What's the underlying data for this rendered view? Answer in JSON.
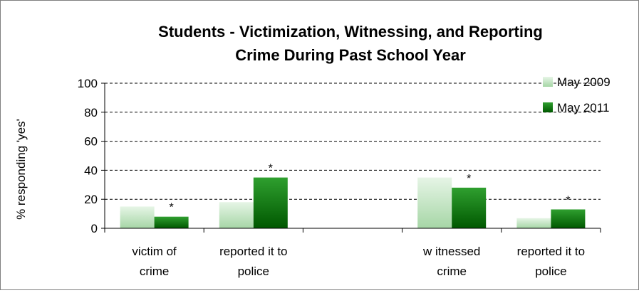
{
  "chart_data": {
    "type": "bar",
    "title_lines": [
      "Students - Victimization, Witnessing, and Reporting",
      "Crime During Past School Year"
    ],
    "ylabel": "% responding 'yes'",
    "xlabel": "",
    "ylim": [
      0,
      100
    ],
    "yticks": [
      0,
      20,
      40,
      60,
      80,
      100
    ],
    "grid": "dashed horizontal",
    "legend_position": "top-right",
    "categories": [
      [
        "victim of",
        "crime"
      ],
      [
        "reported it to",
        "police"
      ],
      [
        "",
        ""
      ],
      [
        "w itnessed",
        "crime"
      ],
      [
        "reported it to",
        "police"
      ]
    ],
    "series": [
      {
        "name": "May 2009",
        "values": [
          15,
          18,
          null,
          35,
          7
        ],
        "color_light": "#e2f3e2",
        "color_dark": "#a8d8a8"
      },
      {
        "name": "May 2011",
        "values": [
          8,
          35,
          null,
          28,
          13
        ],
        "color_light": "#2e9e2e",
        "color_dark": "#005a00"
      }
    ],
    "significance_markers": [
      "*",
      "*",
      "",
      "*",
      "*"
    ]
  }
}
